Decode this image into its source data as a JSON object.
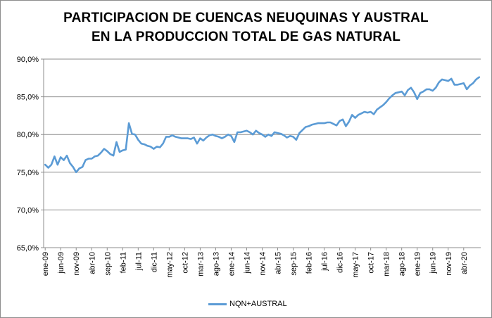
{
  "chart_data": {
    "type": "line",
    "title_lines": [
      "PARTICIPACION DE CUENCAS NEUQUINAS Y AUSTRAL",
      "EN LA PRODUCCION TOTAL DE GAS NATURAL"
    ],
    "xlabel": "",
    "ylabel": "",
    "ylim": [
      0.65,
      0.9
    ],
    "y_ticks": [
      0.65,
      0.7,
      0.75,
      0.8,
      0.85,
      0.9
    ],
    "y_tick_labels": [
      "65,0%",
      "70,0%",
      "75,0%",
      "80,0%",
      "85,0%",
      "90,0%"
    ],
    "x_tick_labels": [
      "ene-09",
      "jun-09",
      "nov-09",
      "abr-10",
      "sep-10",
      "feb-11",
      "jul-11",
      "dic-11",
      "may-12",
      "oct-12",
      "mar-13",
      "ago-13",
      "ene-14",
      "jun-14",
      "nov-14",
      "abr-15",
      "sep-15",
      "feb-16",
      "jul-16",
      "dic-16",
      "may-17",
      "oct-17",
      "mar-18",
      "ago-18",
      "ene-19",
      "jun-19",
      "nov-19",
      "abr-20"
    ],
    "x_tick_months": [
      0,
      5,
      10,
      15,
      20,
      25,
      30,
      35,
      40,
      45,
      50,
      55,
      60,
      65,
      70,
      75,
      80,
      85,
      90,
      95,
      100,
      105,
      110,
      115,
      120,
      125,
      130,
      135
    ],
    "grid": "horizontal",
    "legend_position": "bottom",
    "series": [
      {
        "name": "NQN+AUSTRAL",
        "color": "#5b9bd5",
        "start": "ene-09",
        "values": [
          0.76,
          0.756,
          0.76,
          0.771,
          0.76,
          0.77,
          0.766,
          0.772,
          0.762,
          0.757,
          0.75,
          0.755,
          0.757,
          0.766,
          0.768,
          0.768,
          0.771,
          0.772,
          0.776,
          0.781,
          0.778,
          0.774,
          0.772,
          0.79,
          0.777,
          0.779,
          0.78,
          0.815,
          0.801,
          0.8,
          0.793,
          0.788,
          0.787,
          0.785,
          0.784,
          0.781,
          0.784,
          0.783,
          0.788,
          0.797,
          0.797,
          0.799,
          0.797,
          0.796,
          0.795,
          0.795,
          0.795,
          0.794,
          0.796,
          0.788,
          0.795,
          0.792,
          0.796,
          0.799,
          0.8,
          0.798,
          0.797,
          0.795,
          0.797,
          0.8,
          0.798,
          0.79,
          0.803,
          0.803,
          0.804,
          0.805,
          0.803,
          0.8,
          0.805,
          0.802,
          0.8,
          0.797,
          0.8,
          0.798,
          0.803,
          0.802,
          0.801,
          0.799,
          0.796,
          0.798,
          0.797,
          0.793,
          0.802,
          0.806,
          0.81,
          0.811,
          0.813,
          0.814,
          0.815,
          0.815,
          0.815,
          0.816,
          0.816,
          0.814,
          0.812,
          0.818,
          0.82,
          0.811,
          0.817,
          0.826,
          0.822,
          0.826,
          0.828,
          0.83,
          0.829,
          0.83,
          0.827,
          0.833,
          0.836,
          0.839,
          0.843,
          0.848,
          0.852,
          0.855,
          0.856,
          0.857,
          0.852,
          0.859,
          0.862,
          0.856,
          0.847,
          0.855,
          0.857,
          0.86,
          0.86,
          0.858,
          0.862,
          0.869,
          0.873,
          0.872,
          0.871,
          0.874,
          0.866,
          0.866,
          0.867,
          0.868,
          0.86,
          0.865,
          0.868,
          0.873,
          0.876
        ]
      }
    ]
  }
}
